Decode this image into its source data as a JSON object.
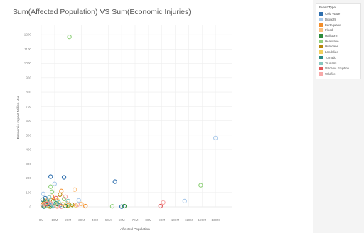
{
  "title": "Sum(Affected Population) VS Sum(Economic Injuries)",
  "legend": {
    "title": "Event Type",
    "items": [
      {
        "label": "Cold Wave",
        "color": "#2f6fae"
      },
      {
        "label": "Drought",
        "color": "#a9c9ea"
      },
      {
        "label": "Earthquake",
        "color": "#f28e2b"
      },
      {
        "label": "Flood",
        "color": "#fbbf7d"
      },
      {
        "label": "Hailstorm",
        "color": "#2e8c3c"
      },
      {
        "label": "Heatwave",
        "color": "#8fd07a"
      },
      {
        "label": "Hurricane",
        "color": "#b8860b"
      },
      {
        "label": "Landslide",
        "color": "#f2cf5b"
      },
      {
        "label": "Tornado",
        "color": "#2a8a84"
      },
      {
        "label": "Tsunami",
        "color": "#86c7c0"
      },
      {
        "label": "Volcanic Eruption",
        "color": "#e15759"
      },
      {
        "label": "Wildfire",
        "color": "#f7a8a8"
      }
    ]
  },
  "chart_data": {
    "type": "scatter",
    "title": "Sum(Affected Population) VS Sum(Economic Injuries)",
    "xlabel": "Affected Population",
    "ylabel": "Economic Impact Million Usd",
    "xlim": [
      0,
      140000000
    ],
    "ylim": [
      0,
      1250
    ],
    "grid": true,
    "legend_position": "right",
    "xticks": [
      {
        "value": 0,
        "label": "0M"
      },
      {
        "value": 10000000,
        "label": "10M"
      },
      {
        "value": 20000000,
        "label": "20M"
      },
      {
        "value": 30000000,
        "label": "30M"
      },
      {
        "value": 40000000,
        "label": "40M"
      },
      {
        "value": 50000000,
        "label": "50M"
      },
      {
        "value": 60000000,
        "label": "60M"
      },
      {
        "value": 70000000,
        "label": "70M"
      },
      {
        "value": 80000000,
        "label": "80M"
      },
      {
        "value": 90000000,
        "label": "90M"
      },
      {
        "value": 100000000,
        "label": "100M"
      },
      {
        "value": 110000000,
        "label": "110M"
      },
      {
        "value": 120000000,
        "label": "120M"
      },
      {
        "value": 130000000,
        "label": "130M"
      }
    ],
    "yticks": [
      0,
      100,
      200,
      300,
      400,
      500,
      600,
      700,
      800,
      900,
      1000,
      1100,
      1200
    ],
    "series": [
      {
        "name": "Cold Wave",
        "color": "#2f6fae",
        "points": [
          [
            7000000,
            210
          ],
          [
            17000000,
            205
          ],
          [
            55000000,
            175
          ],
          [
            3000000,
            60
          ],
          [
            6000000,
            20
          ],
          [
            9000000,
            5
          ],
          [
            2000000,
            8
          ],
          [
            14000000,
            12
          ],
          [
            60000000,
            2
          ]
        ]
      },
      {
        "name": "Drought",
        "color": "#a9c9ea",
        "points": [
          [
            130000000,
            480
          ],
          [
            107000000,
            40
          ],
          [
            10000000,
            160
          ],
          [
            4000000,
            30
          ],
          [
            13000000,
            15
          ],
          [
            28000000,
            45
          ],
          [
            1500000,
            90
          ],
          [
            8000000,
            4
          ]
        ]
      },
      {
        "name": "Earthquake",
        "color": "#f28e2b",
        "points": [
          [
            15000000,
            110
          ],
          [
            33000000,
            5
          ],
          [
            3000000,
            40
          ],
          [
            20000000,
            10
          ],
          [
            8000000,
            70
          ],
          [
            1000000,
            12
          ]
        ]
      },
      {
        "name": "Flood",
        "color": "#fbbf7d",
        "points": [
          [
            25000000,
            120
          ],
          [
            5000000,
            50
          ],
          [
            19000000,
            25
          ],
          [
            30000000,
            20
          ],
          [
            11000000,
            8
          ],
          [
            2500000,
            3
          ]
        ]
      },
      {
        "name": "Hailstorm",
        "color": "#2e8c3c",
        "points": [
          [
            62000000,
            5
          ],
          [
            4000000,
            15
          ],
          [
            12000000,
            20
          ],
          [
            18000000,
            6
          ],
          [
            6500000,
            2
          ]
        ]
      },
      {
        "name": "Heatwave",
        "color": "#8fd07a",
        "points": [
          [
            21000000,
            1185
          ],
          [
            119000000,
            150
          ],
          [
            7000000,
            140
          ],
          [
            8000000,
            105
          ],
          [
            53000000,
            4
          ],
          [
            17000000,
            55
          ],
          [
            3500000,
            35
          ],
          [
            22000000,
            5
          ],
          [
            10000000,
            30
          ]
        ]
      },
      {
        "name": "Hurricane",
        "color": "#b8860b",
        "points": [
          [
            14000000,
            85
          ],
          [
            9000000,
            40
          ],
          [
            2000000,
            25
          ],
          [
            23000000,
            15
          ],
          [
            5000000,
            6
          ]
        ]
      },
      {
        "name": "Landslide",
        "color": "#f2cf5b",
        "points": [
          [
            3000000,
            10
          ],
          [
            16000000,
            18
          ],
          [
            12000000,
            45
          ],
          [
            6000000,
            3
          ],
          [
            26000000,
            8
          ]
        ]
      },
      {
        "name": "Tornado",
        "color": "#2a8a84",
        "points": [
          [
            1000000,
            50
          ],
          [
            4500000,
            35
          ],
          [
            7500000,
            15
          ],
          [
            2000000,
            2
          ],
          [
            11000000,
            25
          ]
        ]
      },
      {
        "name": "Tsunami",
        "color": "#86c7c0",
        "points": [
          [
            6000000,
            65
          ],
          [
            13000000,
            30
          ],
          [
            9000000,
            10
          ],
          [
            3000000,
            5
          ],
          [
            20000000,
            40
          ]
        ]
      },
      {
        "name": "Volcanic Eruption",
        "color": "#e15759",
        "points": [
          [
            89000000,
            5
          ],
          [
            11000000,
            60
          ],
          [
            4000000,
            20
          ],
          [
            15000000,
            3
          ]
        ]
      },
      {
        "name": "Wildfire",
        "color": "#f7a8a8",
        "points": [
          [
            91000000,
            30
          ],
          [
            27000000,
            15
          ],
          [
            7000000,
            25
          ],
          [
            18000000,
            70
          ],
          [
            2000000,
            18
          ],
          [
            12000000,
            2
          ]
        ]
      }
    ]
  }
}
